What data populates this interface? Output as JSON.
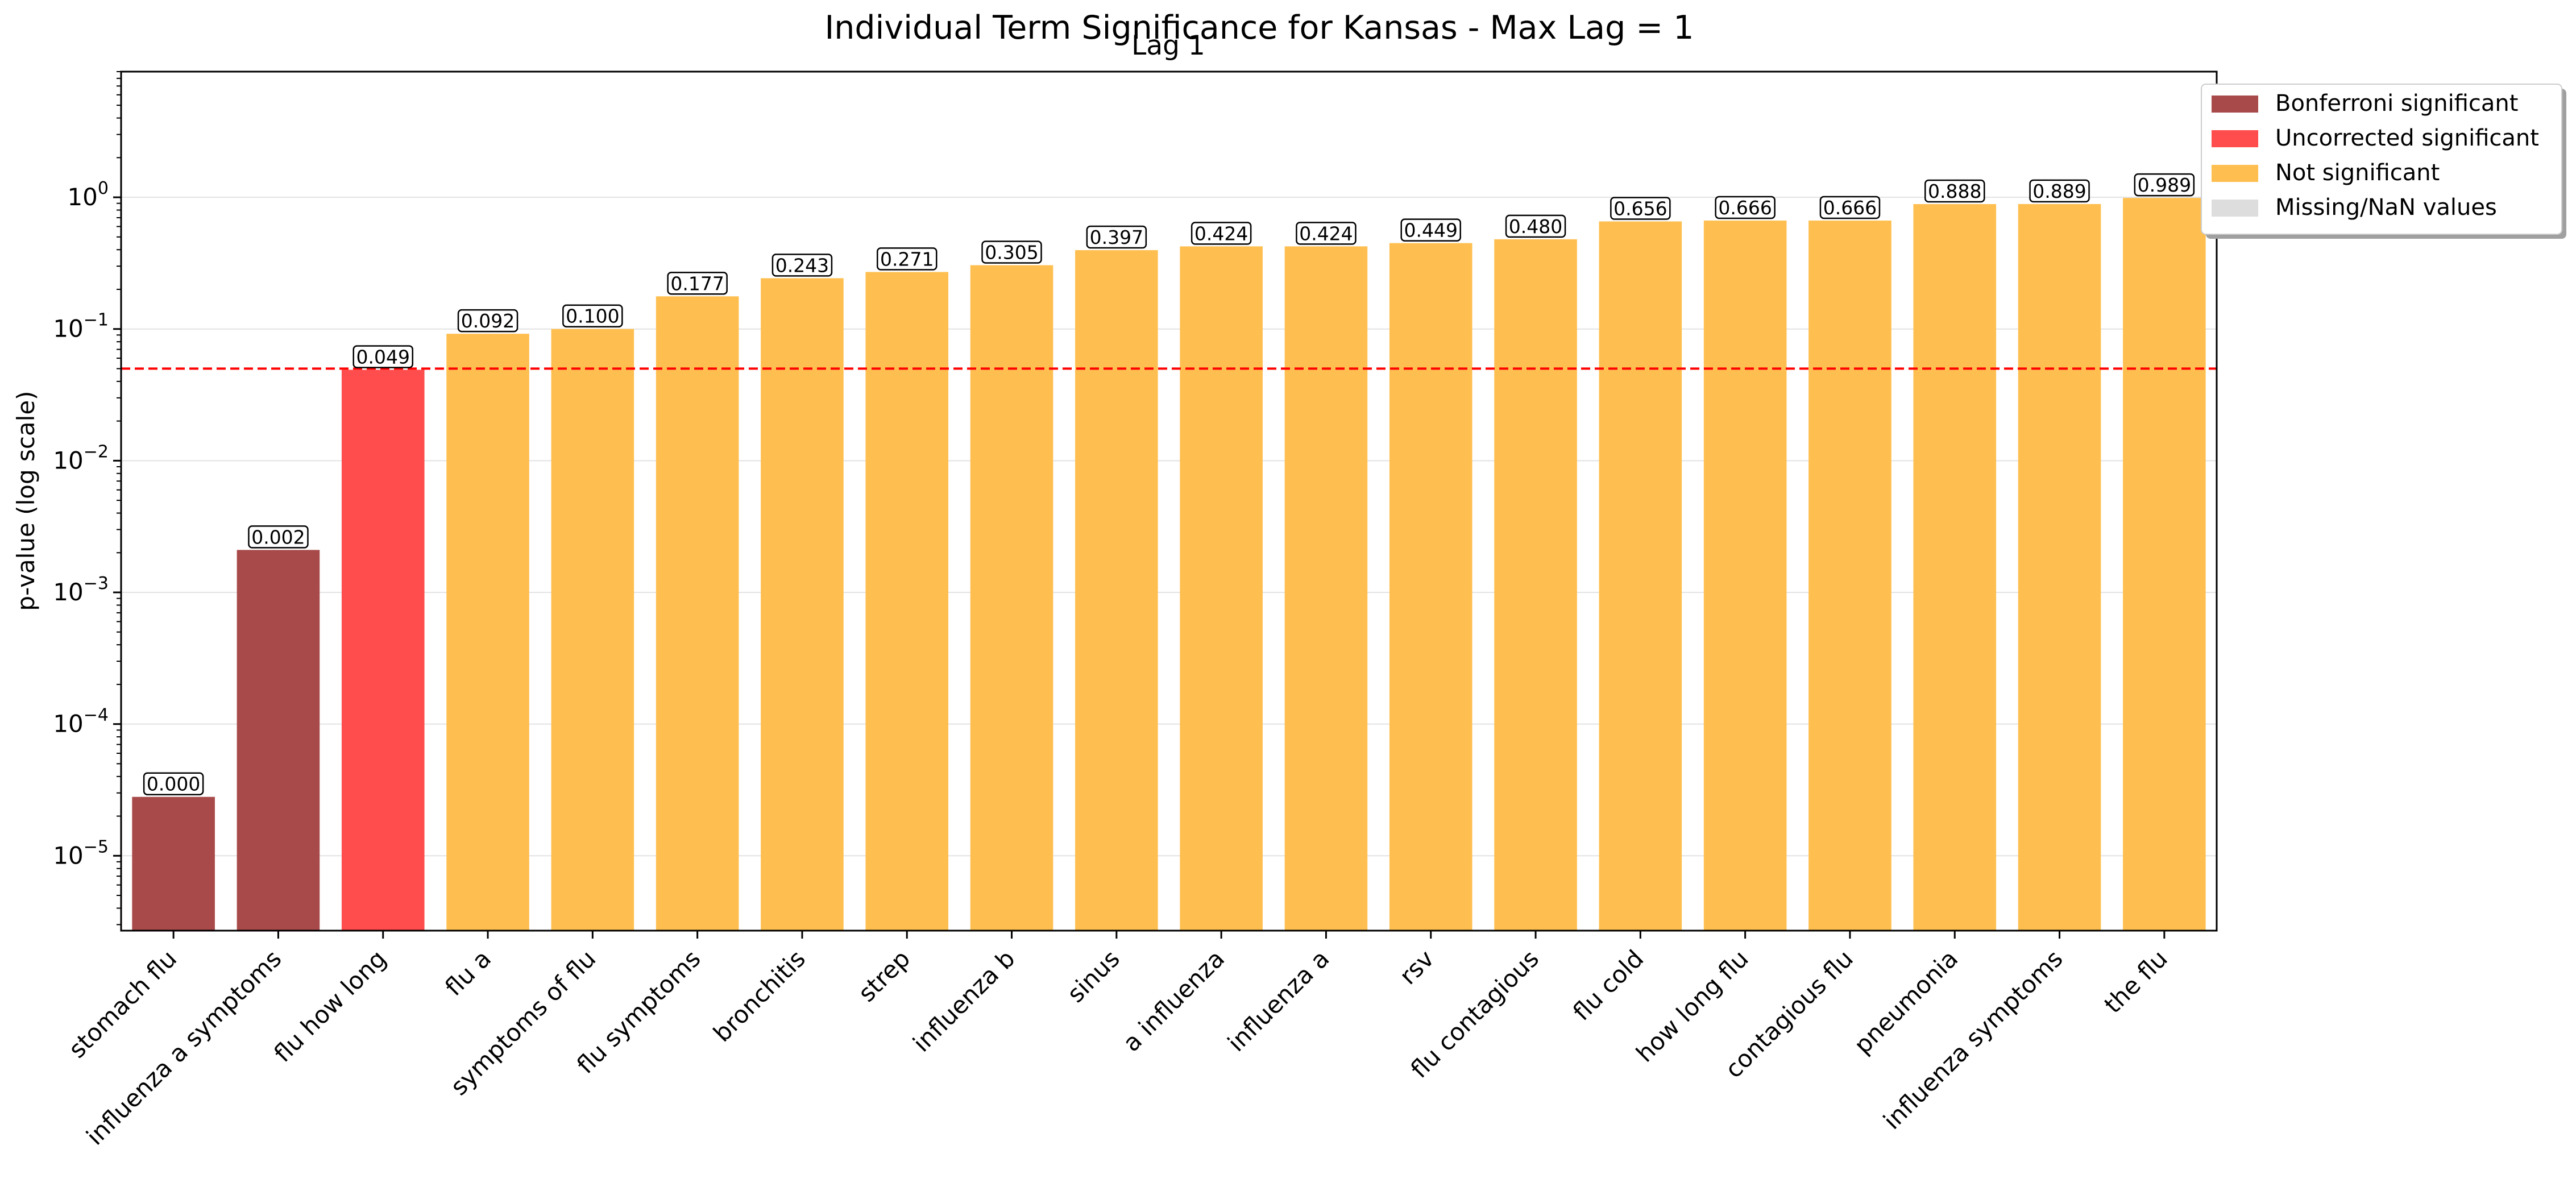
{
  "chart_data": {
    "type": "bar",
    "title": "Individual Term Significance for Kansas - Max Lag = 1",
    "subtitle": "Lag 1",
    "xlabel": "",
    "ylabel": "p-value (log scale)",
    "yscale": "log",
    "ylim": [
      2.7e-06,
      9.0
    ],
    "yticks": [
      {
        "value": 1e-05,
        "base": "10",
        "exp": "−5"
      },
      {
        "value": 0.0001,
        "base": "10",
        "exp": "−4"
      },
      {
        "value": 0.001,
        "base": "10",
        "exp": "−3"
      },
      {
        "value": 0.01,
        "base": "10",
        "exp": "−2"
      },
      {
        "value": 0.1,
        "base": "10",
        "exp": "−1"
      },
      {
        "value": 1,
        "base": "10",
        "exp": "0"
      }
    ],
    "grid": true,
    "legend_position": "top-right",
    "threshold": {
      "value": 0.05,
      "color": "#ff0000",
      "style": "dashed"
    },
    "categories": [
      "stomach flu",
      "influenza a symptoms",
      "flu how long",
      "flu a",
      "symptoms of flu",
      "flu symptoms",
      "bronchitis",
      "strep",
      "influenza b",
      "sinus",
      "a influenza",
      "influenza a",
      "rsv",
      "flu contagious",
      "flu cold",
      "how long flu",
      "contagious flu",
      "pneumonia",
      "influenza symptoms",
      "the flu"
    ],
    "values": [
      2.8e-05,
      0.0021,
      0.049,
      0.092,
      0.1,
      0.177,
      0.243,
      0.271,
      0.305,
      0.397,
      0.424,
      0.424,
      0.449,
      0.48,
      0.656,
      0.666,
      0.666,
      0.888,
      0.889,
      0.989
    ],
    "labels": [
      "0.000",
      "0.002",
      "0.049",
      "0.092",
      "0.100",
      "0.177",
      "0.243",
      "0.271",
      "0.305",
      "0.397",
      "0.424",
      "0.424",
      "0.449",
      "0.480",
      "0.656",
      "0.666",
      "0.666",
      "0.888",
      "0.889",
      "0.989"
    ],
    "status": [
      "bonferroni",
      "bonferroni",
      "uncorrected",
      "ns",
      "ns",
      "ns",
      "ns",
      "ns",
      "ns",
      "ns",
      "ns",
      "ns",
      "ns",
      "ns",
      "ns",
      "ns",
      "ns",
      "ns",
      "ns",
      "ns"
    ],
    "legend": [
      {
        "key": "bonferroni",
        "label": "Bonferroni significant",
        "color": "#a94a4a"
      },
      {
        "key": "uncorrected",
        "label": "Uncorrected significant",
        "color": "#ff4c4c"
      },
      {
        "key": "ns",
        "label": "Not significant",
        "color": "#ffbf50"
      },
      {
        "key": "nan",
        "label": "Missing/NaN values",
        "color": "#dddddd"
      }
    ]
  }
}
